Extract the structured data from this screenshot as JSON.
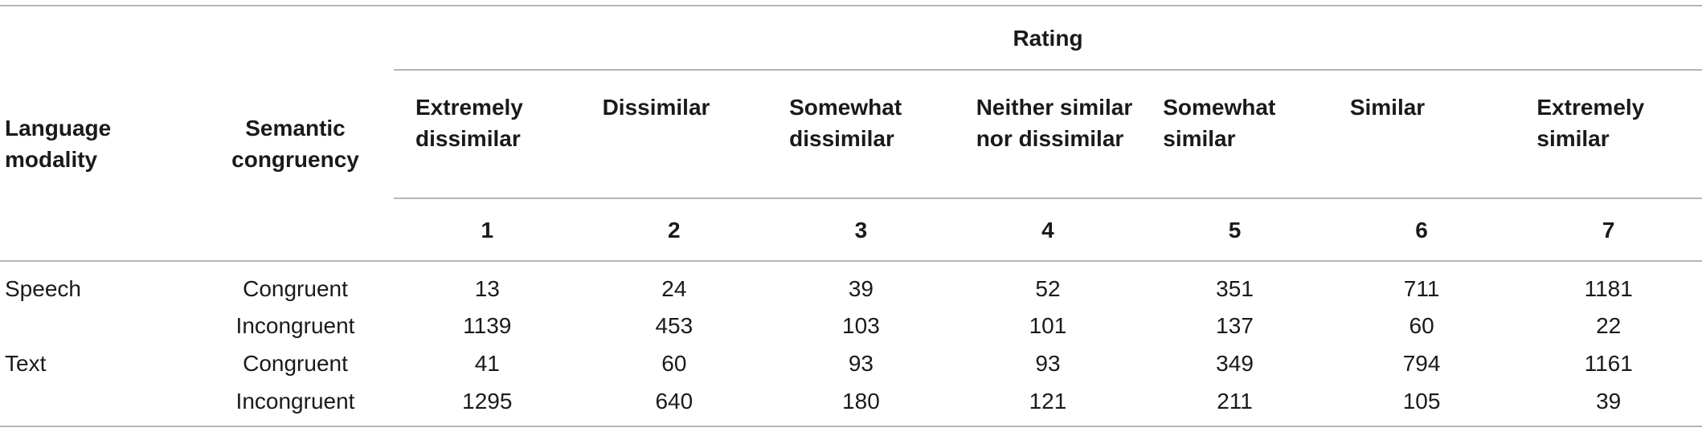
{
  "header": {
    "rating_label": "Rating",
    "language_modality": "Language modality",
    "semantic_congruency": "Semantic congruency",
    "scale_labels": [
      "Extremely dissimilar",
      "Dissimilar",
      "Somewhat dissimilar",
      "Neither similar nor dissimilar",
      "Somewhat similar",
      "Similar",
      "Extremely similar"
    ],
    "scale_numbers": [
      "1",
      "2",
      "3",
      "4",
      "5",
      "6",
      "7"
    ]
  },
  "rows": [
    {
      "modality": "Speech",
      "congruency": "Congruent",
      "values": [
        "13",
        "24",
        "39",
        "52",
        "351",
        "711",
        "1181"
      ]
    },
    {
      "modality": "",
      "congruency": "Incongruent",
      "values": [
        "1139",
        "453",
        "103",
        "101",
        "137",
        "60",
        "22"
      ]
    },
    {
      "modality": "Text",
      "congruency": "Congruent",
      "values": [
        "41",
        "60",
        "93",
        "93",
        "349",
        "794",
        "1161"
      ]
    },
    {
      "modality": "",
      "congruency": "Incongruent",
      "values": [
        "1295",
        "640",
        "180",
        "121",
        "211",
        "105",
        "39"
      ]
    }
  ]
}
